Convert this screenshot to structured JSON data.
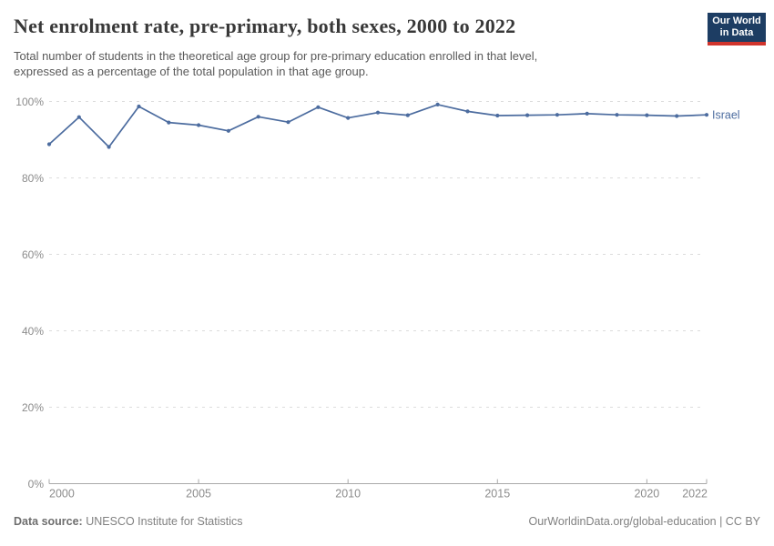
{
  "header": {
    "title": "Net enrolment rate, pre-primary, both sexes, 2000 to 2022",
    "subtitle_line1": "Total number of students in the theoretical age group for pre-primary education enrolled in that level,",
    "subtitle_line2": "expressed as a percentage of the total population in that age group.",
    "logo_line1": "Our World",
    "logo_line2": "in Data"
  },
  "chart_data": {
    "type": "line",
    "title": "Net enrolment rate, pre-primary, both sexes, 2000 to 2022",
    "x": [
      2000,
      2001,
      2002,
      2003,
      2004,
      2005,
      2006,
      2007,
      2008,
      2009,
      2010,
      2011,
      2012,
      2013,
      2014,
      2015,
      2016,
      2017,
      2018,
      2019,
      2020,
      2021,
      2022
    ],
    "series": [
      {
        "name": "Israel",
        "color": "#4c6c9f",
        "values": [
          88.8,
          95.9,
          88.1,
          98.7,
          94.5,
          93.8,
          92.3,
          96.0,
          94.6,
          98.5,
          95.7,
          97.1,
          96.4,
          99.2,
          97.4,
          96.3,
          96.4,
          96.5,
          96.8,
          96.5,
          96.4,
          96.2,
          96.5
        ]
      }
    ],
    "xlim": [
      2000,
      2022
    ],
    "ylim": [
      0,
      100
    ],
    "x_ticks": [
      2000,
      2005,
      2010,
      2015,
      2020,
      2022
    ],
    "y_ticks": [
      0,
      20,
      40,
      60,
      80,
      100
    ],
    "y_tick_suffix": "%",
    "grid": "dashed horizontal gridlines",
    "legend_position": "end-of-line label",
    "end_label": "Israel",
    "xlabel": "",
    "ylabel": ""
  },
  "colors": {
    "line": "#4c6c9f",
    "grid": "#dcdcdc",
    "axis": "#aaaaaa",
    "tick_text": "#8c8c8c",
    "logo_bg": "#1d3d63",
    "logo_bar": "#d0342c"
  },
  "footer": {
    "data_source_label": "Data source:",
    "data_source_value": "UNESCO Institute for Statistics",
    "attribution": "OurWorldinData.org/global-education | CC BY"
  }
}
